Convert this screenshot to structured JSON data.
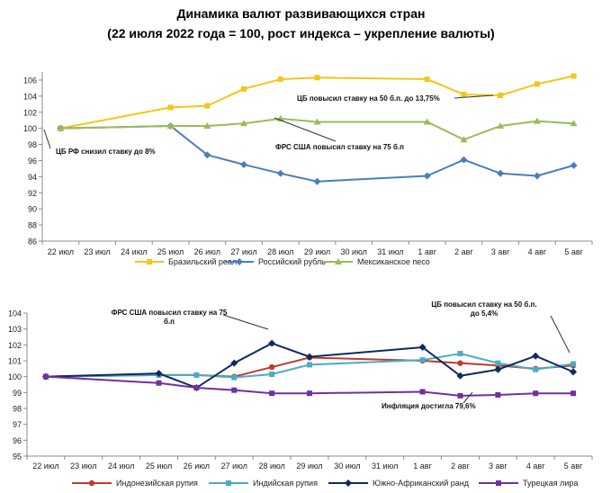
{
  "title": "Динамика валют развивающихся стран",
  "subtitle": "(22 июля 2022 года = 100, рост индекса – укрепление валюты)",
  "chart_data": [
    {
      "type": "line",
      "categories": [
        "22 июл",
        "23 июл",
        "24 июл",
        "25 июл",
        "26 июл",
        "27 июл",
        "28 июл",
        "29 июл",
        "30 июл",
        "31 июл",
        "1 авг",
        "2 авг",
        "3 авг",
        "4 авг",
        "5 авг"
      ],
      "ylim": [
        86,
        107
      ],
      "yticks": [
        86,
        88,
        90,
        92,
        94,
        96,
        98,
        100,
        102,
        104,
        106
      ],
      "grid": false,
      "legend": "bottom",
      "series": [
        {
          "name": "Бразильский реал",
          "color": "#F5C518",
          "marker": "square",
          "points": [
            [
              0,
              100.0
            ],
            [
              3,
              102.6
            ],
            [
              4,
              102.8
            ],
            [
              5,
              104.9
            ],
            [
              6,
              106.1
            ],
            [
              7,
              106.3
            ],
            [
              10,
              106.1
            ],
            [
              11,
              104.2
            ],
            [
              12,
              104.1
            ],
            [
              13,
              105.5
            ],
            [
              14,
              106.5
            ]
          ]
        },
        {
          "name": "Российский рубль",
          "color": "#4A7EBB",
          "marker": "diamond",
          "points": [
            [
              0,
              100.0
            ],
            [
              3,
              100.3
            ],
            [
              4,
              96.7
            ],
            [
              5,
              95.5
            ],
            [
              6,
              94.4
            ],
            [
              7,
              93.4
            ],
            [
              10,
              94.1
            ],
            [
              11,
              96.1
            ],
            [
              12,
              94.4
            ],
            [
              13,
              94.1
            ],
            [
              14,
              95.4
            ]
          ]
        },
        {
          "name": "Мексиканское песо",
          "color": "#9BBB59",
          "marker": "triangle",
          "points": [
            [
              0,
              100.0
            ],
            [
              3,
              100.3
            ],
            [
              4,
              100.3
            ],
            [
              5,
              100.6
            ],
            [
              6,
              101.2
            ],
            [
              7,
              100.8
            ],
            [
              10,
              100.8
            ],
            [
              11,
              98.6
            ],
            [
              12,
              100.3
            ],
            [
              13,
              100.9
            ],
            [
              14,
              100.6
            ]
          ]
        }
      ],
      "annotations": [
        {
          "text": "ЦБ повысил ставку на 50 б.п. до 13,75%",
          "x": 12,
          "y": 104.1
        },
        {
          "text": "ФРС США повысил ставку на 75 б.п",
          "x": 6,
          "y": 101.2
        },
        {
          "text": "ЦБ РФ снизил ставку до 8%",
          "x": 0,
          "y": 100.0
        }
      ]
    },
    {
      "type": "line",
      "categories": [
        "22 июл",
        "23 июл",
        "24 июл",
        "25 июл",
        "26 июл",
        "27 июл",
        "28 июл",
        "29 июл",
        "30 июл",
        "31 июл",
        "1 авг",
        "2 авг",
        "3 авг",
        "4 авг",
        "5 авг"
      ],
      "ylim": [
        95,
        104
      ],
      "yticks": [
        95,
        96,
        97,
        98,
        99,
        100,
        101,
        102,
        103,
        104
      ],
      "grid": false,
      "legend": "bottom",
      "series": [
        {
          "name": "Индонезийская рупия",
          "color": "#C0392B",
          "marker": "circle",
          "points": [
            [
              0,
              100.0
            ],
            [
              3,
              100.1
            ],
            [
              4,
              100.1
            ],
            [
              5,
              100.0
            ],
            [
              6,
              100.6
            ],
            [
              7,
              101.2
            ],
            [
              10,
              101.0
            ],
            [
              11,
              100.85
            ],
            [
              12,
              100.7
            ],
            [
              13,
              100.5
            ],
            [
              14,
              100.7
            ]
          ]
        },
        {
          "name": "Индийская рупия",
          "color": "#4BACC6",
          "marker": "square",
          "points": [
            [
              0,
              100.0
            ],
            [
              3,
              100.1
            ],
            [
              4,
              100.1
            ],
            [
              5,
              99.95
            ],
            [
              6,
              100.15
            ],
            [
              7,
              100.75
            ],
            [
              10,
              101.05
            ],
            [
              11,
              101.45
            ],
            [
              12,
              100.85
            ],
            [
              13,
              100.45
            ],
            [
              14,
              100.8
            ]
          ]
        },
        {
          "name": "Южно-Африканский ранд",
          "color": "#0E2B5C",
          "marker": "diamond",
          "points": [
            [
              0,
              100.0
            ],
            [
              3,
              100.2
            ],
            [
              4,
              99.3
            ],
            [
              5,
              100.85
            ],
            [
              6,
              102.1
            ],
            [
              7,
              101.25
            ],
            [
              10,
              101.85
            ],
            [
              11,
              100.05
            ],
            [
              12,
              100.45
            ],
            [
              13,
              101.3
            ],
            [
              14,
              100.3
            ]
          ]
        },
        {
          "name": "Турецкая лира",
          "color": "#7030A0",
          "marker": "square",
          "points": [
            [
              0,
              100.0
            ],
            [
              3,
              99.6
            ],
            [
              4,
              99.3
            ],
            [
              5,
              99.15
            ],
            [
              6,
              98.95
            ],
            [
              7,
              98.95
            ],
            [
              10,
              99.05
            ],
            [
              11,
              98.8
            ],
            [
              12,
              98.85
            ],
            [
              13,
              98.95
            ],
            [
              14,
              98.95
            ]
          ]
        }
      ],
      "annotations": [
        {
          "text": "ФРС США повысил ставку на 75 б.п",
          "x": 6,
          "y": 102.1
        },
        {
          "text": "ЦБ повысил ставку на 50 б.п. до 5,4%",
          "x": 14,
          "y": 100.8
        },
        {
          "text": "Инфляция достигла 79,6%",
          "x": 11,
          "y": 98.8
        }
      ]
    }
  ]
}
